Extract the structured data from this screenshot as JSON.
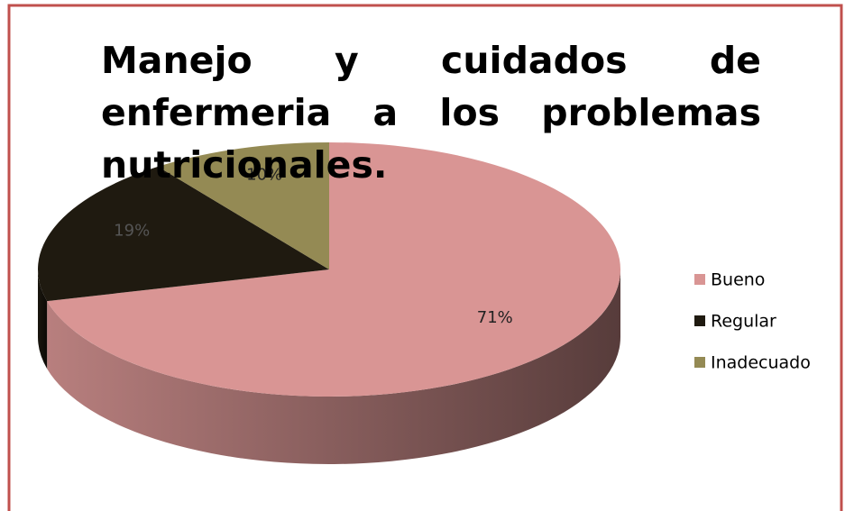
{
  "chart_data": {
    "type": "pie",
    "title": "Manejo y cuidados de enfermeria a los problemas nutricionales.",
    "categories": [
      "Bueno",
      "Regular",
      "Inadecuado"
    ],
    "values": [
      71,
      19,
      10
    ],
    "value_labels": [
      "71%",
      "19%",
      "10%"
    ],
    "colors": [
      "#d99594",
      "#1f1a10",
      "#948a54"
    ],
    "legend": "right"
  }
}
